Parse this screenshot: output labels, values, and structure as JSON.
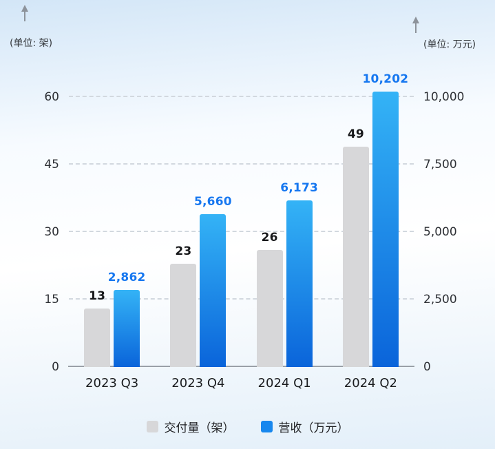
{
  "chart_data": {
    "type": "bar",
    "title": "",
    "categories": [
      "2023 Q3",
      "2023 Q4",
      "2024 Q1",
      "2024 Q2"
    ],
    "series": [
      {
        "name": "交付量（架）",
        "axis": "left",
        "values": [
          13,
          23,
          26,
          49
        ],
        "value_labels": [
          "13",
          "23",
          "26",
          "49"
        ],
        "bar_color": "#d7d7d9",
        "label_color": "#17181a",
        "legend_color": "#d7d7d9"
      },
      {
        "name": "营收（万元）",
        "axis": "right",
        "values": [
          2862,
          5660,
          6173,
          10202
        ],
        "value_labels": [
          "2,862",
          "5,660",
          "6,173",
          "10,202"
        ],
        "bar_color_top": "#34b3f6",
        "bar_color_bottom": "#0a64da",
        "label_color": "#1677f0",
        "legend_color": "#1787ee"
      }
    ],
    "left_axis": {
      "unit": "(单位: 架)",
      "tick_labels": [
        "0",
        "15",
        "30",
        "45",
        "60"
      ],
      "tick_values": [
        0,
        15,
        30,
        45,
        60
      ],
      "max_tick": 60
    },
    "right_axis": {
      "unit": "(单位: 万元)",
      "tick_labels": [
        "0",
        "2,500",
        "5,000",
        "7,500",
        "10,000"
      ],
      "tick_values": [
        0,
        2500,
        5000,
        7500,
        10000
      ],
      "max_tick": 10000
    },
    "legend": [
      "交付量（架）",
      "营收（万元）"
    ],
    "grid": "dashed",
    "legend_position": "bottom"
  }
}
